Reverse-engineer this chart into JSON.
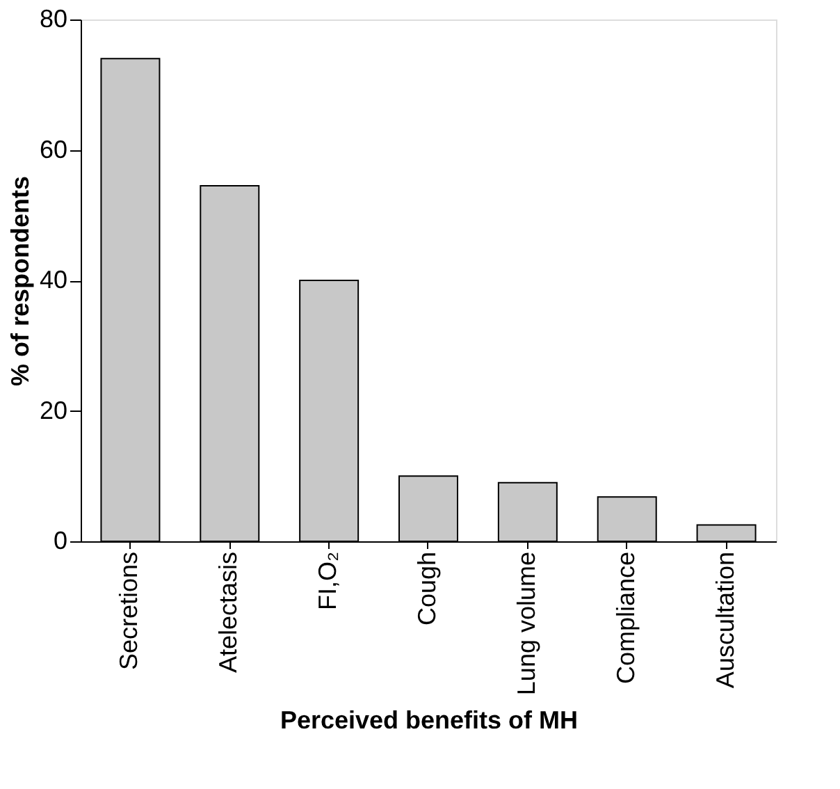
{
  "chart_data": {
    "type": "bar",
    "xlabel": "Perceived benefits of MH",
    "ylabel": "% of respondents",
    "categories": [
      "Secretions",
      "Atelectasis",
      "FI,O₂",
      "Cough",
      "Lung volume",
      "Compliance",
      "Auscultation"
    ],
    "values": [
      74,
      54.5,
      40,
      10,
      9,
      6.8,
      2.5
    ],
    "color": "#c8c8c8",
    "ylim": [
      0,
      80
    ],
    "yticks": [
      0,
      20,
      40,
      60,
      80
    ],
    "grid": false
  }
}
